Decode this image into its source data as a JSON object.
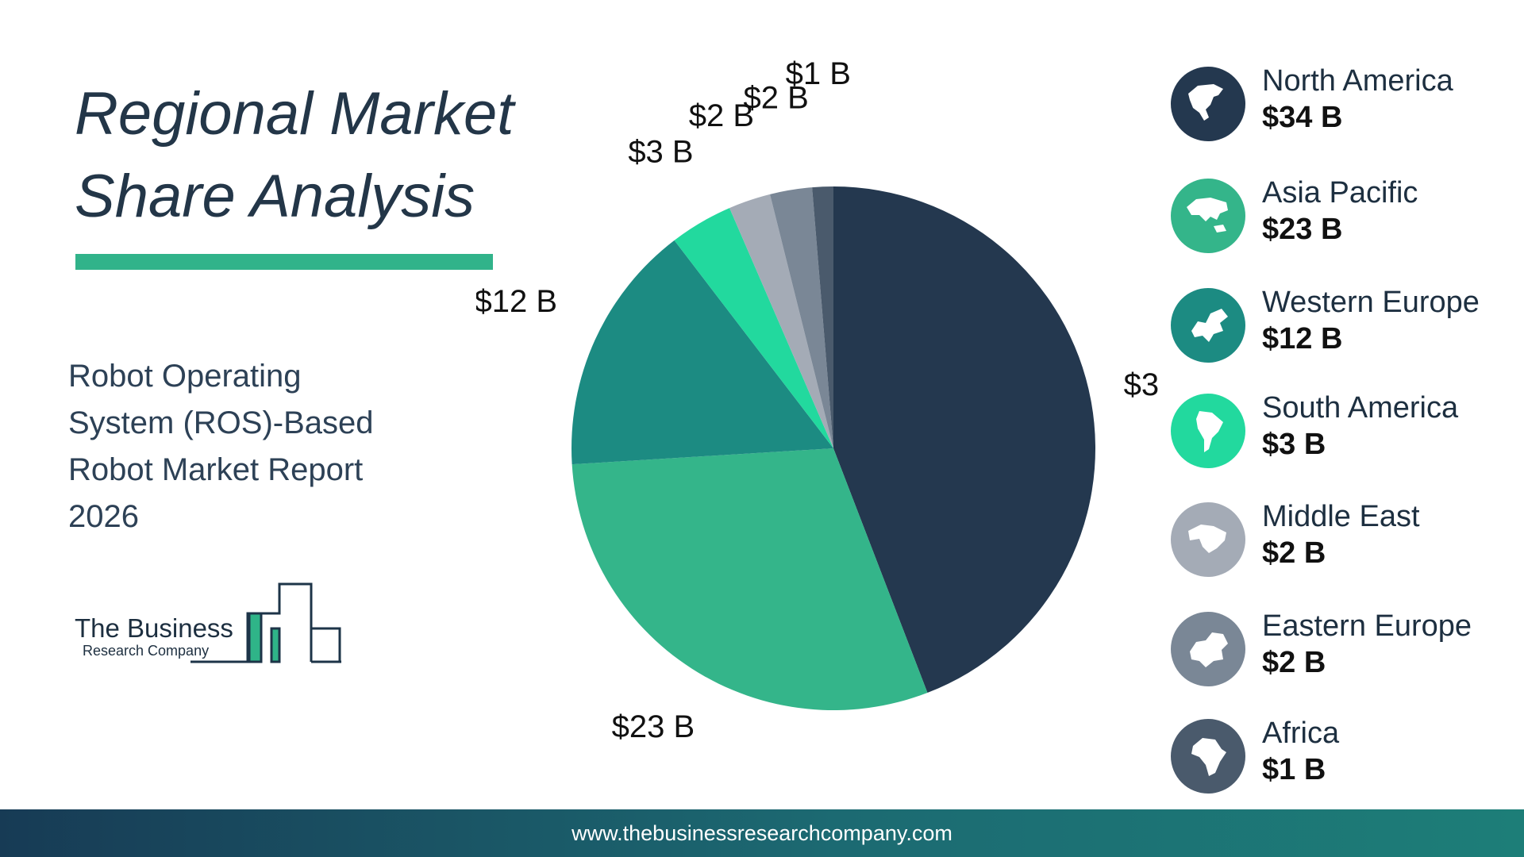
{
  "title": {
    "line1": "Regional Market",
    "line2": "Share Analysis"
  },
  "subtitle": "Robot Operating System (ROS)-Based Robot Market Report 2026",
  "logo": {
    "line1": "The Business",
    "line2": "Research Company"
  },
  "footer": {
    "url": "www.thebusinessresearchcompany.com"
  },
  "colors": {
    "title": "#233648",
    "accent": "#31b38a",
    "footer_start": "#173b55",
    "footer_end": "#1d7e78"
  },
  "chart_data": {
    "type": "pie",
    "start_angle_deg": 0,
    "direction": "clockwise",
    "slices": [
      {
        "label": "North America",
        "value": 34,
        "display": "$34 B",
        "color": "#24384f",
        "icon": "north-america-map-icon"
      },
      {
        "label": "Asia Pacific",
        "value": 23,
        "display": "$23 B",
        "color": "#34b58a",
        "icon": "asia-pacific-map-icon"
      },
      {
        "label": "Western Europe",
        "value": 12,
        "display": "$12 B",
        "color": "#1c8b82",
        "icon": "western-europe-map-icon"
      },
      {
        "label": "South America",
        "value": 3,
        "display": "$3 B",
        "color": "#22d99e",
        "icon": "south-america-map-icon"
      },
      {
        "label": "Middle East",
        "value": 2,
        "display": "$2 B",
        "color": "#a4abb6",
        "icon": "middle-east-map-icon"
      },
      {
        "label": "Eastern Europe",
        "value": 2,
        "display": "$2 B",
        "color": "#7a8796",
        "icon": "eastern-europe-map-icon"
      },
      {
        "label": "Africa",
        "value": 1,
        "display": "$1 B",
        "color": "#4a5a6c",
        "icon": "africa-map-icon"
      }
    ]
  },
  "legend": [
    {
      "name": "North America",
      "value": "$34 B"
    },
    {
      "name": "Asia Pacific",
      "value": "$23 B"
    },
    {
      "name": "Western Europe",
      "value": "$12 B"
    },
    {
      "name": "South America",
      "value": "$3 B"
    },
    {
      "name": "Middle East",
      "value": "$2 B"
    },
    {
      "name": "Eastern Europe",
      "value": "$2 B"
    },
    {
      "name": "Africa",
      "value": "$1 B"
    }
  ]
}
